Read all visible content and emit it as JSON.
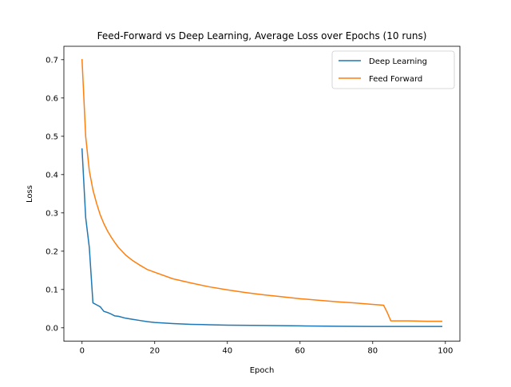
{
  "chart_data": {
    "type": "line",
    "title": "Feed-Forward vs Deep Learning, Average Loss over Epochs (10 runs)",
    "xlabel": "Epoch",
    "ylabel": "Loss",
    "xlim": [
      -5,
      104
    ],
    "ylim": [
      -0.035,
      0.735
    ],
    "xticks": [
      0,
      20,
      40,
      60,
      80,
      100
    ],
    "xtick_labels": [
      "0",
      "20",
      "40",
      "60",
      "80",
      "100"
    ],
    "yticks": [
      0.0,
      0.1,
      0.2,
      0.3,
      0.4,
      0.5,
      0.6,
      0.7
    ],
    "ytick_labels": [
      "0.0",
      "0.1",
      "0.2",
      "0.3",
      "0.4",
      "0.5",
      "0.6",
      "0.7"
    ],
    "grid": false,
    "legend_position": "top-right",
    "series": [
      {
        "name": "Deep Learning",
        "color": "#1f77b4",
        "x": [
          0,
          1,
          2,
          3,
          4,
          5,
          6,
          7,
          8,
          9,
          10,
          12,
          14,
          16,
          18,
          20,
          25,
          30,
          35,
          40,
          50,
          60,
          70,
          80,
          90,
          99
        ],
        "y": [
          0.467,
          0.288,
          0.21,
          0.065,
          0.06,
          0.055,
          0.043,
          0.04,
          0.036,
          0.031,
          0.03,
          0.025,
          0.022,
          0.019,
          0.016,
          0.014,
          0.011,
          0.009,
          0.008,
          0.007,
          0.006,
          0.005,
          0.004,
          0.0035,
          0.0035,
          0.0035
        ]
      },
      {
        "name": "Feed Forward",
        "color": "#ff7f0e",
        "x": [
          0,
          1,
          2,
          3,
          4,
          5,
          6,
          7,
          8,
          9,
          10,
          12,
          14,
          16,
          18,
          20,
          25,
          30,
          35,
          40,
          45,
          50,
          55,
          60,
          65,
          70,
          75,
          80,
          83,
          84,
          85,
          90,
          95,
          99
        ],
        "y": [
          0.7,
          0.5,
          0.41,
          0.36,
          0.325,
          0.295,
          0.272,
          0.253,
          0.237,
          0.223,
          0.21,
          0.19,
          0.175,
          0.163,
          0.152,
          0.145,
          0.128,
          0.117,
          0.107,
          0.099,
          0.092,
          0.086,
          0.081,
          0.076,
          0.072,
          0.068,
          0.065,
          0.061,
          0.059,
          0.04,
          0.018,
          0.018,
          0.017,
          0.017
        ]
      }
    ]
  }
}
